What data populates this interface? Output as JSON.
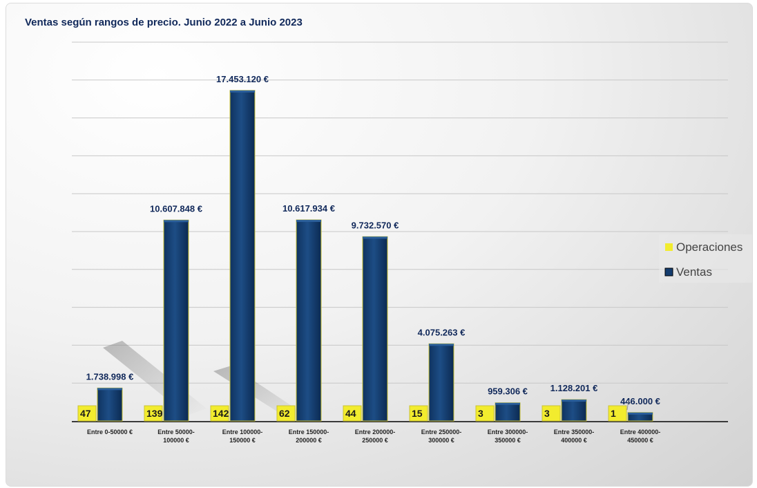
{
  "chart_data": {
    "type": "bar",
    "title": "Ventas según rangos de precio. Junio 2022 a Junio 2023",
    "categories": [
      [
        "Entre 0-50000 €"
      ],
      [
        "Entre 50000-",
        "100000 €"
      ],
      [
        "Entre 100000-",
        "150000 €"
      ],
      [
        "Entre 150000-",
        "200000 €"
      ],
      [
        "Entre 200000-",
        "250000 €"
      ],
      [
        "Entre 250000-",
        "300000 €"
      ],
      [
        "Entre 300000-",
        "350000 €"
      ],
      [
        "Entre 350000-",
        "400000 €"
      ],
      [
        "Entre 400000-",
        "450000 €"
      ]
    ],
    "series": [
      {
        "name": "Operaciones",
        "color": "#f2ec2e",
        "values": [
          47,
          139,
          142,
          62,
          44,
          15,
          3,
          3,
          1
        ],
        "labels": [
          "47",
          "139",
          "142",
          "62",
          "44",
          "15",
          "3",
          "3",
          "1"
        ]
      },
      {
        "name": "Ventas",
        "color": "#143c6e",
        "values": [
          1738998,
          10607848,
          17453120,
          10617934,
          9732570,
          4075263,
          959306,
          1128201,
          446000
        ],
        "labels": [
          "1.738.998 €",
          "10.607.848 €",
          "17.453.120 €",
          "10.617.934 €",
          "9.732.570 €",
          "4.075.263 €",
          "959.306 €",
          "1.128.201 €",
          "446.000 €"
        ]
      }
    ],
    "ylim": [
      0,
      20000000
    ],
    "grid": true,
    "legend": "right"
  }
}
